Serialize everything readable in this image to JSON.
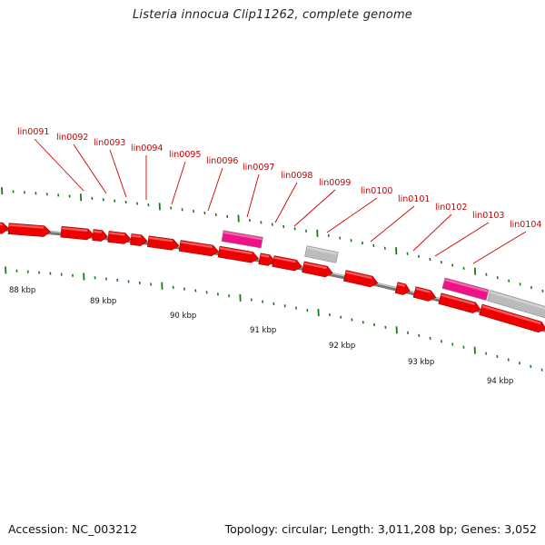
{
  "title": "Listeria innocua Clip11262, complete genome",
  "footer": {
    "accession": "Accession: NC_003212",
    "topology": "Topology: circular; Length: 3,011,208 bp; Genes: 3,052"
  },
  "colors": {
    "gene": "#ee0000",
    "gene_dark": "#a00000",
    "rna": "#ee1188",
    "pseudo": "#bbbbbb",
    "backbone": "#777777",
    "tick": "#1a7a1a",
    "label": "#cc0000"
  },
  "gene_labels": [
    "lin0091",
    "lin0092",
    "lin0093",
    "lin0094",
    "lin0095",
    "lin0096",
    "lin0097",
    "lin0098",
    "lin0099",
    "lin0100",
    "lin0101",
    "lin0102",
    "lin0103",
    "lin0104"
  ],
  "kbp_labels": [
    "88 kbp",
    "89 kbp",
    "90 kbp",
    "91 kbp",
    "92 kbp",
    "93 kbp",
    "94 kbp"
  ]
}
